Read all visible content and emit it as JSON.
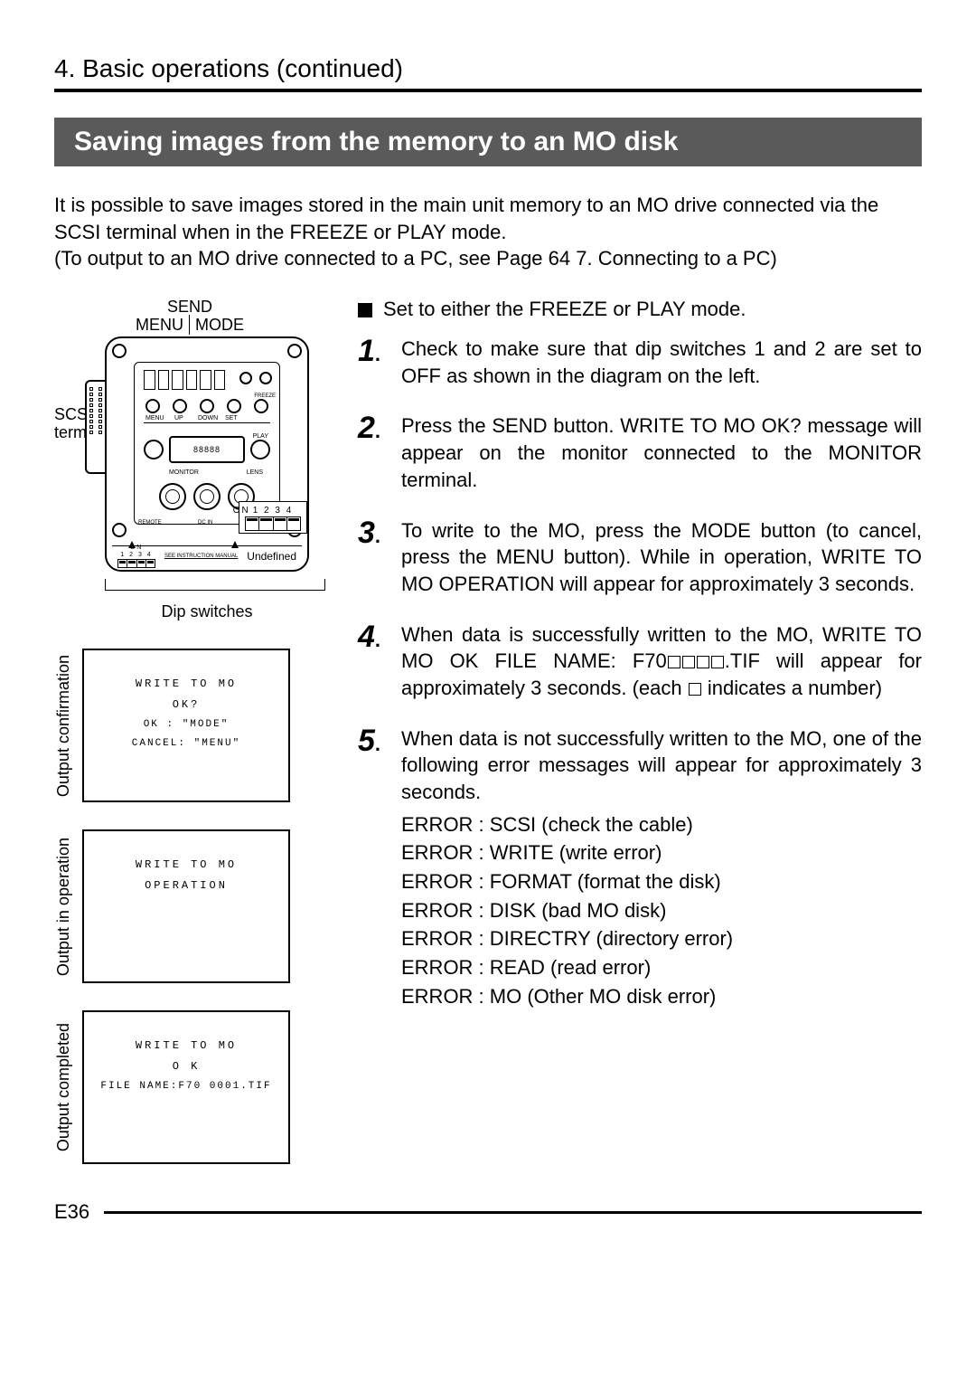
{
  "section_heading": "4. Basic operations (continued)",
  "banner_title": "Saving images from the memory to an MO disk",
  "intro_lines": [
    "It is possible to save images stored in the main unit memory to an MO drive connected via the SCSI terminal when in the FREEZE or PLAY mode.",
    "(To output to an MO drive connected to a PC, see Page 64 7. Connecting to a PC)"
  ],
  "device": {
    "top_label_send": "SEND",
    "top_label_menu": "MENU",
    "top_label_mode": "MODE",
    "scsi_label_line1": "SCSI",
    "scsi_label_line2": "terminal",
    "inner_labels": {
      "menu": "MENU",
      "up": "UP",
      "down": "DOWN",
      "set": "SET",
      "freeze": "FREEZE",
      "play": "PLAY",
      "monitor": "MONITOR",
      "lens": "LENS",
      "remote": "REMOTE",
      "dcin": "DC IN"
    },
    "dip_on": "ON",
    "dip_nums": "1 2 3 4",
    "see_instruction": "SEE INSTRUCTION MANUAL",
    "undefined_label": "Undefined",
    "dip_caption": "Dip switches",
    "lcd_text": "88888"
  },
  "screens": {
    "confirmation": {
      "vlabel": "Output confirmation",
      "line1": "WRITE TO MO",
      "line2": "OK?",
      "line3": "OK    : \"MODE\"",
      "line4": "CANCEL: \"MENU\""
    },
    "operation": {
      "vlabel": "Output in operation",
      "line1": "WRITE TO MO",
      "line2": "OPERATION"
    },
    "completed": {
      "vlabel": "Output completed",
      "line1": "WRITE TO MO",
      "line2": "O K",
      "line3": "FILE NAME:F70 0001.TIF"
    }
  },
  "lead_text": "Set to either the FREEZE or PLAY mode.",
  "steps": {
    "s1": "Check to make sure that dip switches 1 and 2 are set to OFF as shown in the diagram on the left.",
    "s2": "Press the SEND button. WRITE TO MO OK? message will appear on the monitor connected to the MONITOR terminal.",
    "s3": "To write to the MO, press the MODE button (to cancel, press the MENU button). While in operation, WRITE TO MO OPERATION will appear for approximately 3 seconds.",
    "s4_pre": "When data is successfully written to the MO, WRITE TO MO OK FILE NAME: F70",
    "s4_mid": ".TIF will appear for approximately 3 seconds. (each ",
    "s4_post": " indicates a number)",
    "s5_intro": "When data is not successfully written to the MO, one of the following error messages will appear for approximately 3 seconds.",
    "errors": [
      "ERROR : SCSI (check the cable)",
      "ERROR : WRITE (write error)",
      "ERROR : FORMAT (format the disk)",
      "ERROR : DISK (bad MO disk)",
      "ERROR : DIRECTRY (directory error)",
      "ERROR : READ (read error)",
      "ERROR : MO (Other MO disk error)"
    ]
  },
  "page_number": "E36",
  "colors": {
    "banner_bg": "#5a5a5a",
    "text": "#000000",
    "page_bg": "#ffffff"
  }
}
